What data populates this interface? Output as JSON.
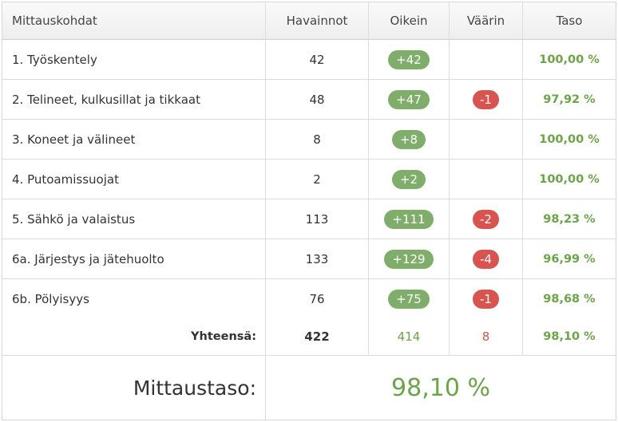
{
  "header": {
    "col_item": "Mittauskohdat",
    "col_observations": "Havainnot",
    "col_correct": "Oikein",
    "col_wrong": "Väärin",
    "col_level": "Taso"
  },
  "rows": [
    {
      "label": "1. Työskentely",
      "observations": "42",
      "correct": "+42",
      "wrong": "",
      "level": "100,00 %"
    },
    {
      "label": "2. Telineet, kulkusillat ja tikkaat",
      "observations": "48",
      "correct": "+47",
      "wrong": "-1",
      "level": "97,92 %"
    },
    {
      "label": "3. Koneet ja välineet",
      "observations": "8",
      "correct": "+8",
      "wrong": "",
      "level": "100,00 %"
    },
    {
      "label": "4. Putoamissuojat",
      "observations": "2",
      "correct": "+2",
      "wrong": "",
      "level": "100,00 %"
    },
    {
      "label": "5. Sähkö ja valaistus",
      "observations": "113",
      "correct": "+111",
      "wrong": "-2",
      "level": "98,23 %"
    },
    {
      "label": "6a. Järjestys ja jätehuolto",
      "observations": "133",
      "correct": "+129",
      "wrong": "-4",
      "level": "96,99 %"
    },
    {
      "label": "6b. Pölyisyys",
      "observations": "76",
      "correct": "+75",
      "wrong": "-1",
      "level": "98,68 %"
    }
  ],
  "totals": {
    "label": "Yhteensä:",
    "observations": "422",
    "correct": "414",
    "wrong": "8",
    "level": "98,10 %"
  },
  "summary": {
    "label": "Mittaustaso:",
    "value": "98,10 %"
  },
  "colors": {
    "correct_badge": "#7fad6a",
    "wrong_badge": "#d9534f",
    "level_text": "#6aa546"
  }
}
